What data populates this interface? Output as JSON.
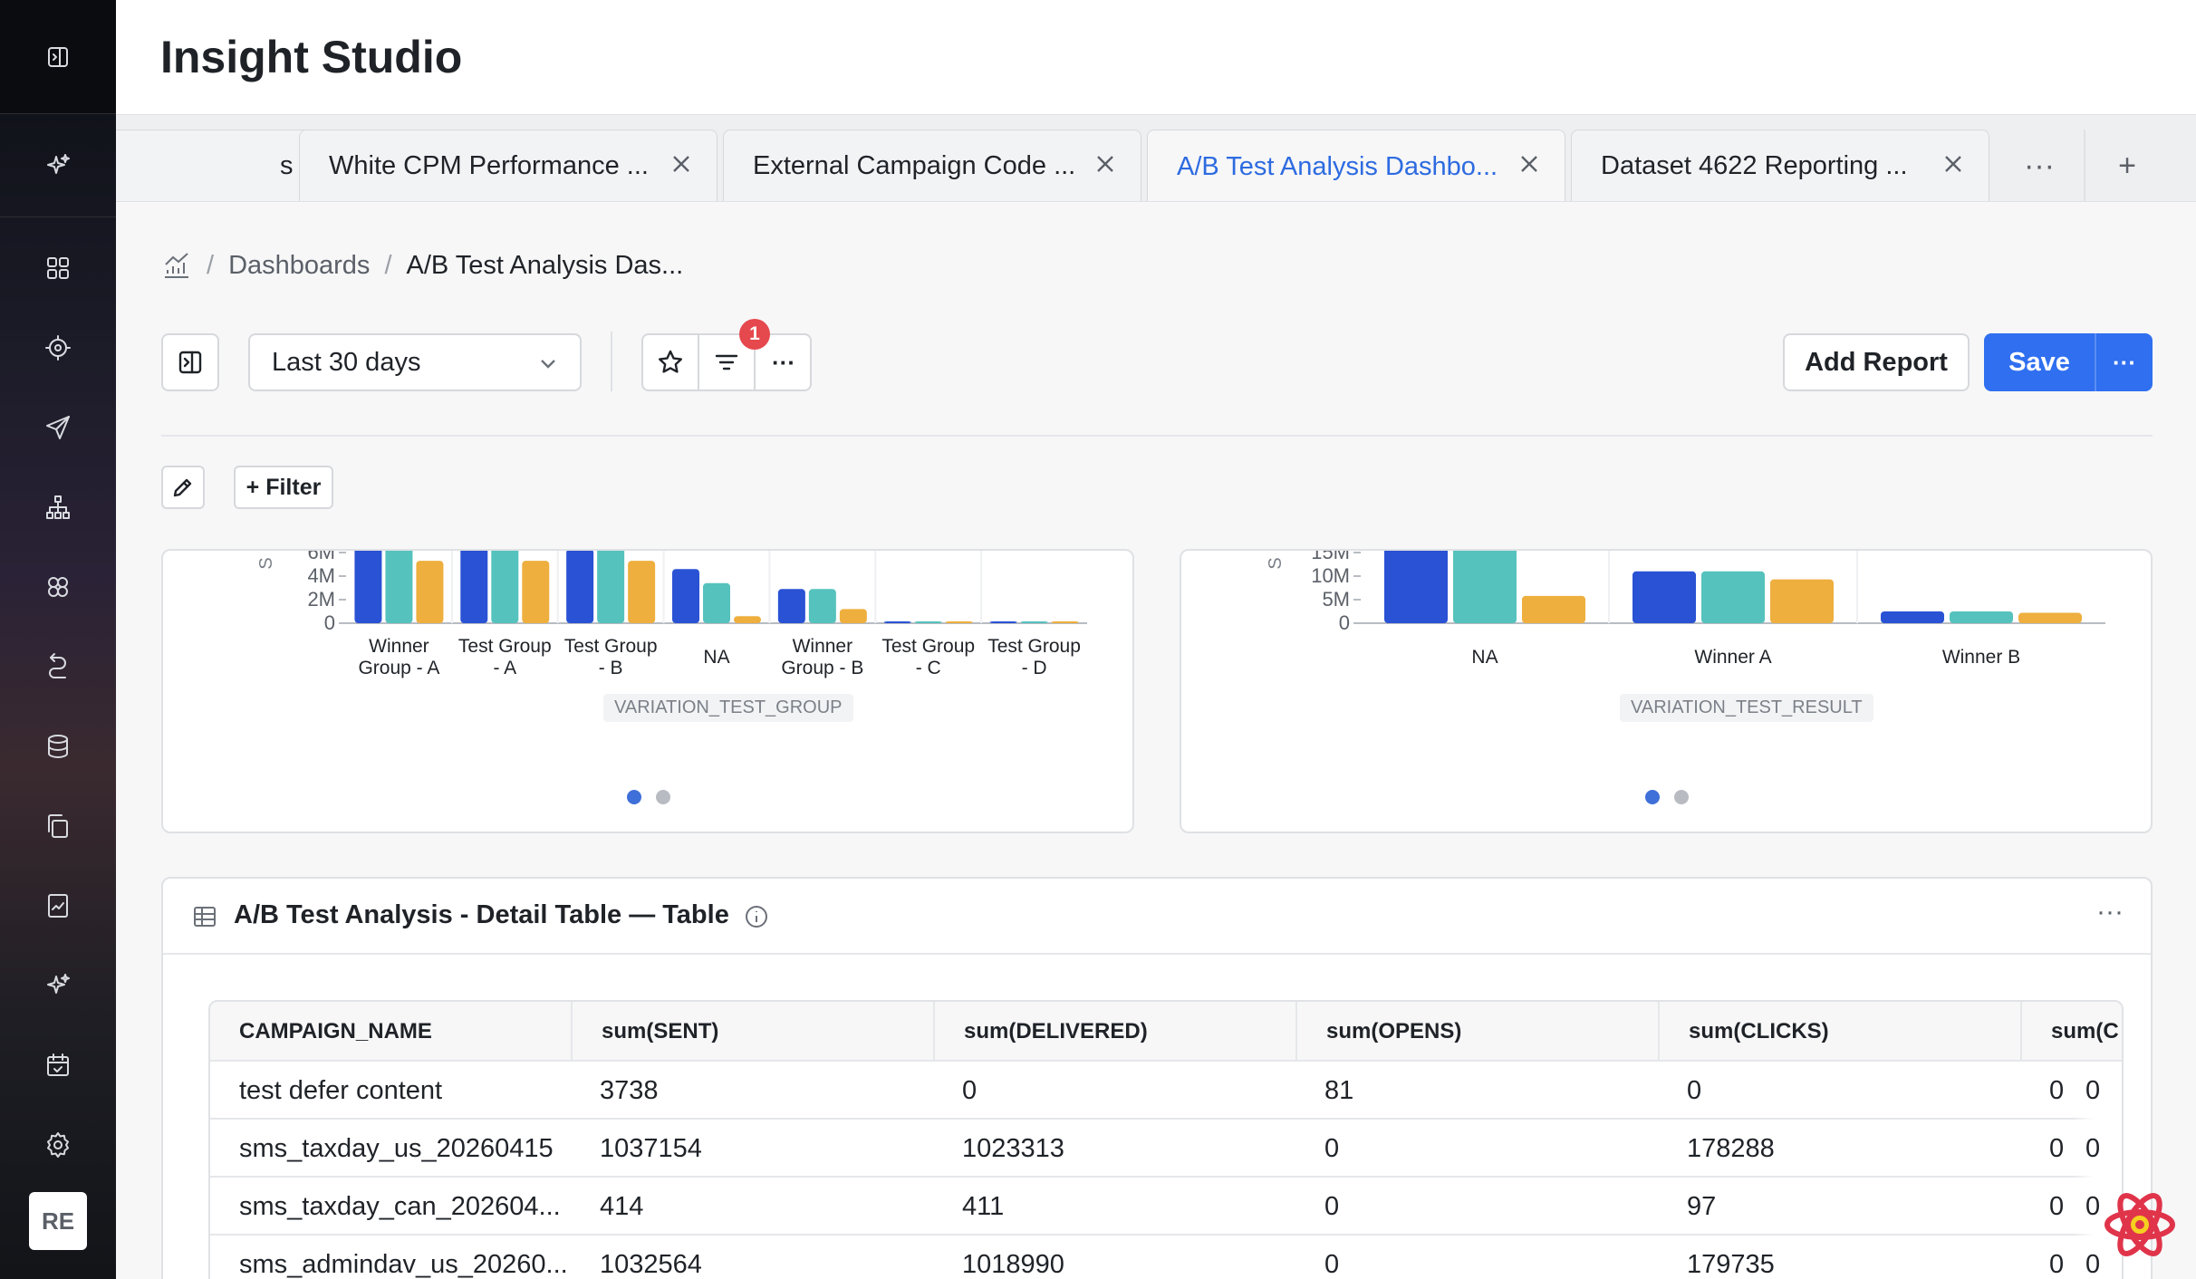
{
  "app": {
    "title": "Insight Studio",
    "avatar_initials": "RE"
  },
  "sidebar": {
    "items": [
      {
        "icon": "grid-icon"
      },
      {
        "icon": "target-icon"
      },
      {
        "icon": "send-icon"
      },
      {
        "icon": "hierarchy-icon"
      },
      {
        "icon": "segments-icon"
      },
      {
        "icon": "journey-icon"
      },
      {
        "icon": "database-icon"
      },
      {
        "icon": "copy-icon"
      },
      {
        "icon": "report-icon"
      },
      {
        "icon": "sparkle-icon"
      },
      {
        "icon": "calendar-icon"
      },
      {
        "icon": "gear-icon"
      }
    ]
  },
  "tabs": [
    {
      "label": "s D...",
      "active": false
    },
    {
      "label": "White CPM Performance ...",
      "active": false
    },
    {
      "label": "External Campaign Code ...",
      "active": false
    },
    {
      "label": "A/B Test Analysis Dashbo...",
      "active": true
    },
    {
      "label": "Dataset 4622 Reporting ...",
      "active": false
    }
  ],
  "tab_more_label": "···",
  "tab_add_label": "+",
  "breadcrumb": {
    "parent": "Dashboards",
    "current": "A/B Test Analysis Das..."
  },
  "toolbar": {
    "date_range": "Last 30 days",
    "filter_badge": "1",
    "more_label": "···",
    "add_report_label": "Add Report",
    "save_label": "Save",
    "save_more_label": "···",
    "add_filter_label": "+ Filter"
  },
  "chart_data": [
    {
      "type": "bar",
      "xlabel": "VARIATION_TEST_GROUP",
      "categories": [
        "Winner Group - A",
        "Test Group - A",
        "Test Group - B",
        "NA",
        "Winner Group - B",
        "Test Group - C",
        "Test Group - D"
      ],
      "y_ticks": [
        "0",
        "2M",
        "4M",
        "6M"
      ],
      "ylim": [
        0,
        6000000
      ],
      "series_colors": [
        "#2a52d4",
        "#55c2bd",
        "#eeaf3e"
      ],
      "series": [
        {
          "values": [
            6500000,
            6500000,
            6300000,
            4600000,
            2900000,
            40000,
            60000
          ]
        },
        {
          "values": [
            6500000,
            6500000,
            6500000,
            3400000,
            2900000,
            30000,
            40000
          ]
        },
        {
          "values": [
            5300000,
            5300000,
            5300000,
            600000,
            1200000,
            20000,
            20000
          ]
        }
      ],
      "pagination": {
        "pages": 2,
        "active": 0
      }
    },
    {
      "type": "bar",
      "xlabel": "VARIATION_TEST_RESULT",
      "categories": [
        "NA",
        "Winner A",
        "Winner B"
      ],
      "y_ticks": [
        "0",
        "5M",
        "10M",
        "15M"
      ],
      "ylim": [
        0,
        15000000
      ],
      "series_colors": [
        "#2a52d4",
        "#55c2bd",
        "#eeaf3e"
      ],
      "series": [
        {
          "values": [
            16000000,
            11000000,
            2500000
          ]
        },
        {
          "values": [
            16000000,
            11000000,
            2500000
          ]
        },
        {
          "values": [
            5800000,
            9300000,
            2200000
          ]
        }
      ],
      "pagination": {
        "pages": 2,
        "active": 0
      }
    }
  ],
  "table_card": {
    "title": "A/B Test Analysis - Detail Table — Table",
    "columns": [
      "CAMPAIGN_NAME",
      "sum(SENT)",
      "sum(DELIVERED)",
      "sum(OPENS)",
      "sum(CLICKS)",
      "sum(C"
    ],
    "rows": [
      [
        "test defer content",
        "3738",
        "0",
        "81",
        "0",
        "0"
      ],
      [
        "sms_taxday_us_20260415",
        "1037154",
        "1023313",
        "0",
        "178288",
        "0"
      ],
      [
        "sms_taxday_can_202604...",
        "414",
        "411",
        "0",
        "97",
        "0"
      ],
      [
        "sms_admindav_us_20260...",
        "1032564",
        "1018990",
        "0",
        "179735",
        "0"
      ]
    ]
  }
}
